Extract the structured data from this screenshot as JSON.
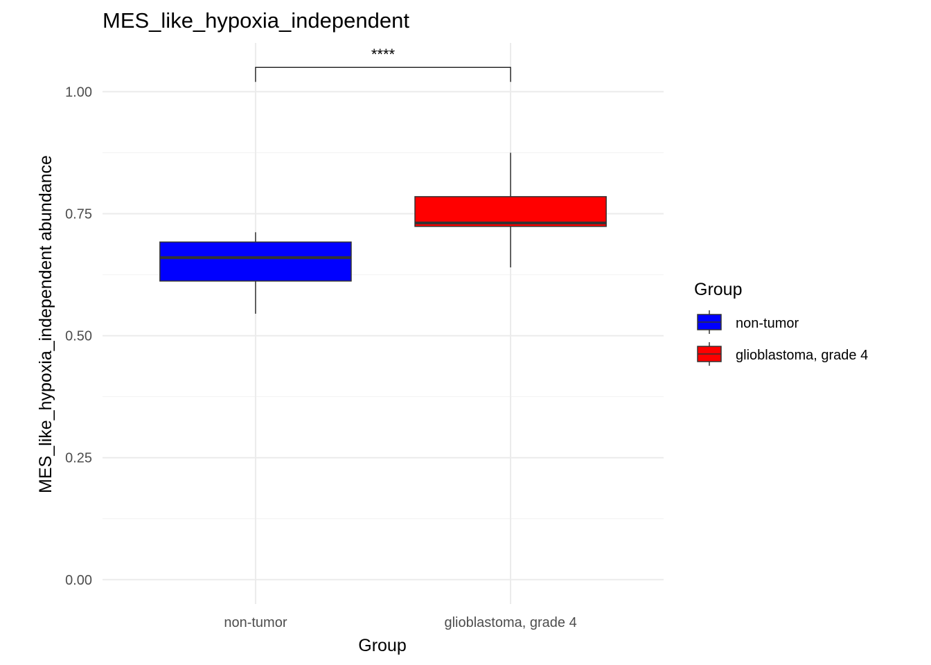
{
  "chart_data": {
    "type": "box",
    "title": "MES_like_hypoxia_independent",
    "xlabel": "Group",
    "ylabel": "MES_like_hypoxia_independent abundance",
    "ylim": [
      -0.05,
      1.1
    ],
    "yticks": [
      0.0,
      0.25,
      0.5,
      0.75,
      1.0
    ],
    "ytick_labels": [
      "0.00",
      "0.25",
      "0.50",
      "0.75",
      "1.00"
    ],
    "categories": [
      "non-tumor",
      "glioblastoma, grade 4"
    ],
    "boxes": [
      {
        "category": "non-tumor",
        "min": 0.545,
        "q1": 0.612,
        "median": 0.66,
        "q3": 0.692,
        "max": 0.712,
        "color": "#0000FF"
      },
      {
        "category": "glioblastoma, grade 4",
        "min": 0.64,
        "q1": 0.724,
        "median": 0.731,
        "q3": 0.785,
        "max": 0.875,
        "color": "#FF0000"
      }
    ],
    "significance": {
      "from": "non-tumor",
      "to": "glioblastoma, grade 4",
      "label": "****",
      "y": 1.05
    },
    "grid": true,
    "legend": {
      "title": "Group",
      "placement": "right",
      "entries": [
        {
          "label": "non-tumor",
          "color": "#0000FF"
        },
        {
          "label": "glioblastoma, grade 4",
          "color": "#FF0000"
        }
      ]
    }
  }
}
